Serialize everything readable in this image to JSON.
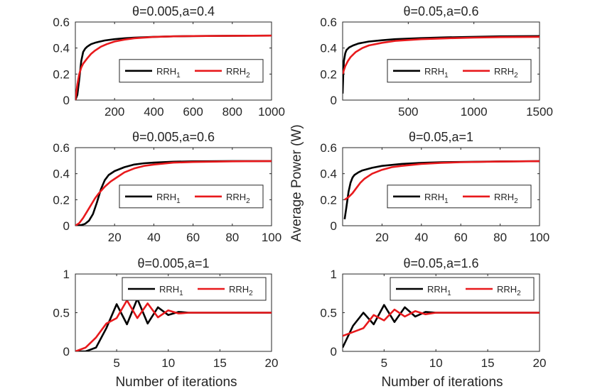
{
  "figure": {
    "ylabel": "Average Power (W)",
    "xlabel": "Number of iterations"
  },
  "chart_data": [
    {
      "type": "line",
      "title": "θ=0.005,a=0.4",
      "xlim": [
        0,
        1000
      ],
      "ylim": [
        0,
        0.6
      ],
      "xticks": [
        200,
        400,
        600,
        800,
        1000
      ],
      "xtick_labels": [
        "200",
        "400",
        "600",
        "800",
        "1000"
      ],
      "yticks": [
        0,
        0.2,
        0.4,
        0.6
      ],
      "ytick_labels": [
        "0",
        "0.2",
        "0.4",
        "0.6"
      ],
      "legend": "center-right",
      "series": [
        {
          "name": "RRH",
          "sub": "1",
          "color": "#000000",
          "x": [
            0,
            10,
            20,
            30,
            40,
            50,
            60,
            70,
            80,
            100,
            120,
            150,
            200,
            250,
            300,
            400,
            500,
            600,
            800,
            1000
          ],
          "y": [
            0,
            0.04,
            0.16,
            0.3,
            0.37,
            0.395,
            0.41,
            0.42,
            0.43,
            0.44,
            0.448,
            0.458,
            0.468,
            0.475,
            0.48,
            0.486,
            0.49,
            0.492,
            0.494,
            0.495
          ]
        },
        {
          "name": "RRH",
          "sub": "2",
          "color": "#e8191c",
          "x": [
            0,
            10,
            20,
            30,
            40,
            60,
            80,
            100,
            130,
            160,
            200,
            250,
            300,
            400,
            500,
            600,
            800,
            1000
          ],
          "y": [
            0,
            0.12,
            0.2,
            0.25,
            0.28,
            0.32,
            0.355,
            0.38,
            0.41,
            0.43,
            0.45,
            0.465,
            0.475,
            0.485,
            0.49,
            0.492,
            0.494,
            0.495
          ]
        }
      ]
    },
    {
      "type": "line",
      "title": "θ=0.05,a=0.6",
      "xlim": [
        0,
        1500
      ],
      "ylim": [
        0,
        0.6
      ],
      "xticks": [
        500,
        1000,
        1500
      ],
      "xtick_labels": [
        "500",
        "1000",
        "1500"
      ],
      "yticks": [
        0,
        0.2,
        0.4,
        0.6
      ],
      "ytick_labels": [
        "0",
        "0.2",
        "0.4",
        "0.6"
      ],
      "legend": "center-right",
      "series": [
        {
          "name": "RRH",
          "sub": "1",
          "color": "#000000",
          "x": [
            0,
            5,
            10,
            20,
            30,
            50,
            80,
            120,
            200,
            300,
            400,
            600,
            800,
            1000,
            1200,
            1500
          ],
          "y": [
            0.05,
            0.2,
            0.3,
            0.36,
            0.385,
            0.405,
            0.42,
            0.435,
            0.45,
            0.46,
            0.468,
            0.476,
            0.482,
            0.486,
            0.49,
            0.492
          ]
        },
        {
          "name": "RRH",
          "sub": "2",
          "color": "#e8191c",
          "x": [
            0,
            10,
            20,
            40,
            60,
            100,
            150,
            200,
            300,
            400,
            600,
            800,
            1000,
            1200,
            1500
          ],
          "y": [
            0.2,
            0.23,
            0.26,
            0.3,
            0.33,
            0.37,
            0.4,
            0.42,
            0.44,
            0.455,
            0.468,
            0.475,
            0.48,
            0.484,
            0.486
          ]
        }
      ]
    },
    {
      "type": "line",
      "title": "θ=0.005,a=0.6",
      "xlim": [
        0,
        100
      ],
      "ylim": [
        0,
        0.6
      ],
      "xticks": [
        20,
        40,
        60,
        80,
        100
      ],
      "xtick_labels": [
        "20",
        "40",
        "60",
        "80",
        "100"
      ],
      "yticks": [
        0,
        0.2,
        0.4,
        0.6
      ],
      "ytick_labels": [
        "0",
        "0.2",
        "0.4",
        "0.6"
      ],
      "legend": "center-right",
      "series": [
        {
          "name": "RRH",
          "sub": "1",
          "color": "#000000",
          "x": [
            0,
            3,
            5,
            7,
            9,
            11,
            13,
            15,
            17,
            20,
            25,
            30,
            35,
            40,
            50,
            60,
            80,
            100
          ],
          "y": [
            0,
            0.005,
            0.015,
            0.04,
            0.09,
            0.18,
            0.28,
            0.35,
            0.39,
            0.42,
            0.45,
            0.47,
            0.48,
            0.485,
            0.492,
            0.495,
            0.497,
            0.497
          ]
        },
        {
          "name": "RRH",
          "sub": "2",
          "color": "#e8191c",
          "x": [
            0,
            2,
            4,
            6,
            8,
            10,
            12,
            15,
            18,
            20,
            25,
            30,
            35,
            40,
            50,
            60,
            80,
            100
          ],
          "y": [
            0,
            0.02,
            0.06,
            0.11,
            0.16,
            0.21,
            0.25,
            0.3,
            0.34,
            0.36,
            0.41,
            0.44,
            0.46,
            0.47,
            0.485,
            0.49,
            0.495,
            0.497
          ]
        }
      ]
    },
    {
      "type": "line",
      "title": "θ=0.05,a=1",
      "xlim": [
        0,
        100
      ],
      "ylim": [
        0,
        0.6
      ],
      "xticks": [
        20,
        40,
        60,
        80,
        100
      ],
      "xtick_labels": [
        "20",
        "40",
        "60",
        "80",
        "100"
      ],
      "yticks": [
        0,
        0.2,
        0.4,
        0.6
      ],
      "ytick_labels": [
        "0",
        "0.2",
        "0.4",
        "0.6"
      ],
      "legend": "center-right",
      "series": [
        {
          "name": "RRH",
          "sub": "1",
          "color": "#000000",
          "x": [
            1,
            2,
            3,
            4,
            5,
            6,
            8,
            10,
            15,
            20,
            30,
            40,
            50,
            60,
            80,
            100
          ],
          "y": [
            0.05,
            0.15,
            0.26,
            0.33,
            0.37,
            0.39,
            0.41,
            0.425,
            0.445,
            0.46,
            0.475,
            0.483,
            0.488,
            0.49,
            0.494,
            0.496
          ]
        },
        {
          "name": "RRH",
          "sub": "2",
          "color": "#e8191c",
          "x": [
            1,
            3,
            5,
            7,
            9,
            11,
            13,
            15,
            20,
            25,
            30,
            40,
            50,
            60,
            80,
            100
          ],
          "y": [
            0.2,
            0.22,
            0.25,
            0.29,
            0.33,
            0.36,
            0.38,
            0.4,
            0.43,
            0.45,
            0.46,
            0.475,
            0.483,
            0.488,
            0.493,
            0.496
          ]
        }
      ]
    },
    {
      "type": "line",
      "title": "θ=0.005,a=1",
      "xlim": [
        1,
        20
      ],
      "ylim": [
        0,
        1
      ],
      "xticks": [
        5,
        10,
        15,
        20
      ],
      "xtick_labels": [
        "5",
        "10",
        "15",
        "20"
      ],
      "yticks": [
        0,
        0.5,
        1
      ],
      "ytick_labels": [
        "0",
        "0.5",
        "1"
      ],
      "legend": "top-right",
      "series": [
        {
          "name": "RRH",
          "sub": "1",
          "color": "#000000",
          "x": [
            1,
            2,
            3,
            4,
            5,
            6,
            7,
            8,
            9,
            10,
            11,
            12,
            13,
            14,
            15,
            16,
            17,
            18,
            19,
            20
          ],
          "y": [
            0,
            0,
            0.05,
            0.3,
            0.61,
            0.35,
            0.68,
            0.36,
            0.57,
            0.47,
            0.51,
            0.5,
            0.5,
            0.5,
            0.5,
            0.5,
            0.5,
            0.5,
            0.5,
            0.5
          ]
        },
        {
          "name": "RRH",
          "sub": "2",
          "color": "#e8191c",
          "x": [
            1,
            2,
            3,
            4,
            5,
            6,
            7,
            8,
            9,
            10,
            11,
            12,
            13,
            14,
            15,
            16,
            17,
            18,
            19,
            20
          ],
          "y": [
            0,
            0.05,
            0.18,
            0.36,
            0.43,
            0.66,
            0.43,
            0.62,
            0.44,
            0.53,
            0.49,
            0.5,
            0.5,
            0.5,
            0.5,
            0.5,
            0.5,
            0.5,
            0.5,
            0.5
          ]
        }
      ]
    },
    {
      "type": "line",
      "title": "θ=0.05,a=1.6",
      "xlim": [
        1,
        20
      ],
      "ylim": [
        0,
        1
      ],
      "xticks": [
        5,
        10,
        15,
        20
      ],
      "xtick_labels": [
        "5",
        "10",
        "15",
        "20"
      ],
      "yticks": [
        0,
        0.5,
        1
      ],
      "ytick_labels": [
        "0",
        "0.5",
        "1"
      ],
      "legend": "top-right",
      "series": [
        {
          "name": "RRH",
          "sub": "1",
          "color": "#000000",
          "x": [
            1,
            2,
            3,
            4,
            5,
            6,
            7,
            8,
            9,
            10,
            11,
            12,
            13,
            14,
            15,
            16,
            17,
            18,
            19,
            20
          ],
          "y": [
            0.05,
            0.33,
            0.5,
            0.35,
            0.6,
            0.38,
            0.57,
            0.45,
            0.51,
            0.5,
            0.5,
            0.5,
            0.5,
            0.5,
            0.5,
            0.5,
            0.5,
            0.5,
            0.5,
            0.5
          ]
        },
        {
          "name": "RRH",
          "sub": "2",
          "color": "#e8191c",
          "x": [
            1,
            2,
            3,
            4,
            5,
            6,
            7,
            8,
            9,
            10,
            11,
            12,
            13,
            14,
            15,
            16,
            17,
            18,
            19,
            20
          ],
          "y": [
            0.2,
            0.25,
            0.3,
            0.47,
            0.4,
            0.54,
            0.45,
            0.52,
            0.48,
            0.5,
            0.5,
            0.5,
            0.5,
            0.5,
            0.5,
            0.5,
            0.5,
            0.5,
            0.5,
            0.5
          ]
        }
      ]
    }
  ]
}
